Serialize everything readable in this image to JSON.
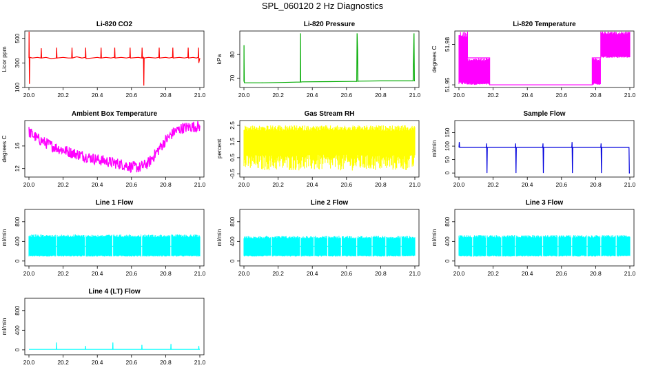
{
  "figure": {
    "title": "SPL_060120  2 Hz Diagnostics"
  },
  "chart_data": [
    {
      "type": "line",
      "title": "Li-820 CO2",
      "ylabel": "Licor ppm",
      "xlabel": "",
      "color": "#ff0000",
      "xlim": [
        20.0,
        21.0
      ],
      "ylim": [
        100,
        560
      ],
      "xticks": [
        20.0,
        20.2,
        20.4,
        20.6,
        20.8,
        21.0
      ],
      "xtick_labels": [
        "20.0",
        "20.2",
        "20.4",
        "20.6",
        "20.8",
        "21.0"
      ],
      "yticks": [
        100,
        300,
        500
      ],
      "ytick_labels": [
        "100",
        "300",
        "500"
      ],
      "series": [
        {
          "x": [
            20.0,
            20.001,
            20.003,
            20.005,
            20.02,
            20.05,
            20.07,
            20.072,
            20.074,
            20.1,
            20.13,
            20.16,
            20.162,
            20.164,
            20.2,
            20.23,
            20.25,
            20.252,
            20.254,
            20.28,
            20.31,
            20.33,
            20.332,
            20.334,
            20.37,
            20.4,
            20.42,
            20.422,
            20.424,
            20.45,
            20.48,
            20.5,
            20.502,
            20.504,
            20.54,
            20.57,
            20.59,
            20.592,
            20.594,
            20.64,
            20.66,
            20.662,
            20.664,
            20.67,
            20.672,
            20.674,
            20.7,
            20.74,
            20.76,
            20.762,
            20.764,
            20.8,
            20.82,
            20.84,
            20.842,
            20.844,
            20.88,
            20.91,
            20.93,
            20.932,
            20.934,
            20.96,
            20.98,
            20.99,
            20.992,
            20.994,
            21.0
          ],
          "y": [
            340,
            560,
            130,
            345,
            340,
            345,
            340,
            420,
            340,
            345,
            335,
            340,
            425,
            340,
            345,
            340,
            340,
            425,
            340,
            350,
            340,
            345,
            425,
            335,
            340,
            345,
            340,
            425,
            340,
            345,
            340,
            345,
            425,
            340,
            345,
            340,
            345,
            425,
            340,
            345,
            340,
            425,
            340,
            345,
            115,
            340,
            345,
            340,
            345,
            425,
            340,
            345,
            340,
            345,
            425,
            340,
            345,
            340,
            345,
            425,
            340,
            345,
            340,
            345,
            425,
            300,
            340
          ]
        }
      ]
    },
    {
      "type": "line",
      "title": "Li-820 Pressure",
      "ylabel": "kPa",
      "xlabel": "",
      "color": "#00aa00",
      "xlim": [
        20.0,
        21.0
      ],
      "ylim": [
        66,
        90
      ],
      "xticks": [
        20.0,
        20.2,
        20.4,
        20.6,
        20.8,
        21.0
      ],
      "xtick_labels": [
        "20.0",
        "20.2",
        "20.4",
        "20.6",
        "20.8",
        "21.0"
      ],
      "yticks": [
        70,
        80
      ],
      "ytick_labels": [
        "70",
        "80"
      ],
      "series": [
        {
          "x": [
            20.0,
            20.0005,
            20.001,
            20.002,
            20.003,
            20.1,
            20.2,
            20.33,
            20.331,
            20.332,
            20.333,
            20.34,
            20.5,
            20.66,
            20.662,
            20.665,
            20.667,
            20.67,
            20.8,
            20.99,
            20.995,
            20.997,
            21.0
          ],
          "y": [
            68.5,
            84,
            78,
            68.2,
            68.0,
            68.0,
            68.1,
            68.3,
            89,
            68.3,
            68.3,
            68.4,
            68.5,
            68.6,
            89,
            82,
            68.6,
            68.7,
            68.8,
            68.8,
            89,
            68.8,
            68.8
          ]
        }
      ]
    },
    {
      "type": "line",
      "title": "Li-820 Temperature",
      "ylabel": "degrees C",
      "xlabel": "",
      "color": "#ff00ff",
      "xlim": [
        20.0,
        21.0
      ],
      "ylim": [
        51.948,
        51.99
      ],
      "xticks": [
        20.0,
        20.2,
        20.4,
        20.6,
        20.8,
        21.0
      ],
      "xtick_labels": [
        "20.0",
        "20.2",
        "20.4",
        "20.6",
        "20.8",
        "21.0"
      ],
      "yticks": [
        51.95,
        51.98
      ],
      "ytick_labels": [
        "51.95",
        "51.98"
      ],
      "series": [
        {
          "name": "",
          "x": [
            20.0,
            20.05,
            20.05,
            20.06,
            20.06,
            20.18,
            20.18,
            20.78,
            20.78,
            20.83,
            20.83,
            21.0
          ],
          "y": [
            51.99,
            51.99,
            51.97,
            51.97,
            51.97,
            51.97,
            51.95,
            51.95,
            51.97,
            51.97,
            51.99,
            51.99
          ]
        }
      ],
      "band": {
        "x": [
          20.0,
          20.05,
          20.05,
          20.18,
          20.18,
          20.78,
          20.78,
          20.83,
          20.83,
          21.0
        ],
        "ylow": [
          51.95,
          51.95,
          51.95,
          51.95,
          51.95,
          51.95,
          51.95,
          51.95,
          51.97,
          51.97
        ],
        "yhigh": [
          51.99,
          51.99,
          51.97,
          51.97,
          51.95,
          51.95,
          51.97,
          51.97,
          51.99,
          51.99
        ]
      }
    },
    {
      "type": "line",
      "title": "Ambient Box Temperature",
      "ylabel": "degrees C",
      "xlabel": "",
      "color": "#ff00ff",
      "xlim": [
        20.0,
        21.0
      ],
      "ylim": [
        10.5,
        20.5
      ],
      "xticks": [
        20.0,
        20.2,
        20.4,
        20.6,
        20.8,
        21.0
      ],
      "xtick_labels": [
        "20.0",
        "20.2",
        "20.4",
        "20.6",
        "20.8",
        "21.0"
      ],
      "yticks": [
        12,
        16
      ],
      "ytick_labels": [
        "12",
        "16"
      ],
      "series": [
        {
          "x": [
            20.0,
            20.05,
            20.1,
            20.15,
            20.2,
            20.25,
            20.3,
            20.35,
            20.4,
            20.45,
            20.5,
            20.55,
            20.6,
            20.65,
            20.7,
            20.75,
            20.8,
            20.85,
            20.9,
            20.95,
            21.0
          ],
          "y": [
            18.5,
            17.3,
            16.5,
            15.8,
            15.3,
            14.8,
            14.4,
            14.0,
            13.6,
            13.3,
            13.0,
            12.7,
            12.3,
            12.2,
            13.0,
            15.0,
            17.0,
            18.5,
            19.2,
            19.4,
            19.5
          ]
        }
      ],
      "noise": 1.0
    },
    {
      "type": "line",
      "title": "Gas Stream RH",
      "ylabel": "percent",
      "xlabel": "",
      "color": "#ffff00",
      "xlim": [
        20.0,
        21.0
      ],
      "ylim": [
        -0.7,
        2.8
      ],
      "xticks": [
        20.0,
        20.2,
        20.4,
        20.6,
        20.8,
        21.0
      ],
      "xtick_labels": [
        "20.0",
        "20.2",
        "20.4",
        "20.6",
        "20.8",
        "21.0"
      ],
      "yticks": [
        -0.5,
        0.5,
        1.5,
        2.5
      ],
      "ytick_labels": [
        "-0.5",
        "0.5",
        "1.5",
        "2.5"
      ],
      "series": [
        {
          "x": [
            20.0,
            21.0
          ],
          "y": [
            1.1,
            1.1
          ]
        }
      ],
      "band": {
        "x": [
          20.0,
          21.0
        ],
        "ylow": [
          -0.3,
          -0.3
        ],
        "yhigh": [
          2.5,
          2.5
        ]
      }
    },
    {
      "type": "line",
      "title": "Sample Flow",
      "ylabel": "ml/min",
      "xlabel": "",
      "color": "#0000dd",
      "xlim": [
        20.0,
        21.0
      ],
      "ylim": [
        -15,
        195
      ],
      "xticks": [
        20.0,
        20.2,
        20.4,
        20.6,
        20.8,
        21.0
      ],
      "xtick_labels": [
        "20.0",
        "20.2",
        "20.4",
        "20.6",
        "20.8",
        "21.0"
      ],
      "yticks": [
        0,
        50,
        100,
        150
      ],
      "ytick_labels": [
        "0",
        "50",
        "100",
        "150"
      ],
      "series": [
        {
          "x": [
            20.0,
            20.002,
            20.004,
            20.16,
            20.162,
            20.164,
            20.166,
            20.33,
            20.332,
            20.334,
            20.336,
            20.49,
            20.492,
            20.494,
            20.496,
            20.66,
            20.662,
            20.664,
            20.666,
            20.83,
            20.832,
            20.834,
            20.836,
            20.995,
            20.997,
            21.0
          ],
          "y": [
            95,
            115,
            95,
            95,
            110,
            0,
            95,
            95,
            110,
            0,
            95,
            95,
            110,
            0,
            95,
            95,
            115,
            0,
            95,
            95,
            110,
            0,
            95,
            95,
            0,
            0
          ]
        }
      ]
    },
    {
      "type": "line",
      "title": "Line 1 Flow",
      "ylabel": "ml/min",
      "xlabel": "",
      "color": "#00ffff",
      "xlim": [
        20.0,
        21.0
      ],
      "ylim": [
        -100,
        1050
      ],
      "xticks": [
        20.0,
        20.2,
        20.4,
        20.6,
        20.8,
        21.0
      ],
      "xtick_labels": [
        "20.0",
        "20.2",
        "20.4",
        "20.6",
        "20.8",
        "21.0"
      ],
      "yticks": [
        0,
        400,
        800
      ],
      "ytick_labels": [
        "0",
        "400",
        "800"
      ],
      "series": [
        {
          "x": [
            20.0,
            21.0
          ],
          "y": [
            300,
            300
          ]
        }
      ],
      "band": {
        "x": [
          20.0,
          21.0
        ],
        "ylow": [
          90,
          90
        ],
        "yhigh": [
          540,
          540
        ]
      },
      "gaps": [
        20.16,
        20.33,
        20.49,
        20.66,
        20.83
      ]
    },
    {
      "type": "line",
      "title": "Line 2 Flow",
      "ylabel": "ml/min",
      "xlabel": "",
      "color": "#00ffff",
      "xlim": [
        20.0,
        21.0
      ],
      "ylim": [
        -100,
        1050
      ],
      "xticks": [
        20.0,
        20.2,
        20.4,
        20.6,
        20.8,
        21.0
      ],
      "xtick_labels": [
        "20.0",
        "20.2",
        "20.4",
        "20.6",
        "20.8",
        "21.0"
      ],
      "yticks": [
        0,
        400,
        800
      ],
      "ytick_labels": [
        "0",
        "400",
        "800"
      ],
      "series": [
        {
          "x": [
            20.0,
            21.0
          ],
          "y": [
            300,
            300
          ]
        }
      ],
      "band": {
        "x": [
          20.0,
          21.0
        ],
        "ylow": [
          90,
          90
        ],
        "yhigh": [
          510,
          510
        ]
      },
      "gaps": [
        20.16,
        20.33,
        20.41,
        20.49,
        20.57,
        20.66,
        20.75,
        20.83,
        20.92
      ]
    },
    {
      "type": "line",
      "title": "Line 3 Flow",
      "ylabel": "ml/min",
      "xlabel": "",
      "color": "#00ffff",
      "xlim": [
        20.0,
        21.0
      ],
      "ylim": [
        -100,
        1050
      ],
      "xticks": [
        20.0,
        20.2,
        20.4,
        20.6,
        20.8,
        21.0
      ],
      "xtick_labels": [
        "20.0",
        "20.2",
        "20.4",
        "20.6",
        "20.8",
        "21.0"
      ],
      "yticks": [
        0,
        400,
        800
      ],
      "ytick_labels": [
        "0",
        "400",
        "800"
      ],
      "series": [
        {
          "x": [
            20.0,
            21.0
          ],
          "y": [
            300,
            300
          ]
        }
      ],
      "band": {
        "x": [
          20.0,
          21.0
        ],
        "ylow": [
          90,
          90
        ],
        "yhigh": [
          530,
          530
        ]
      },
      "gaps": [
        20.08,
        20.16,
        20.25,
        20.33,
        20.49,
        20.58,
        20.66,
        20.75,
        20.83,
        20.92
      ]
    },
    {
      "type": "line",
      "title": "Line 4 (LT) Flow",
      "ylabel": "ml/min",
      "xlabel": "",
      "color": "#00ffff",
      "xlim": [
        20.0,
        21.0
      ],
      "ylim": [
        -100,
        1050
      ],
      "xticks": [
        20.0,
        20.2,
        20.4,
        20.6,
        20.8,
        21.0
      ],
      "xtick_labels": [
        "20.0",
        "20.2",
        "20.4",
        "20.6",
        "20.8",
        "21.0"
      ],
      "yticks": [
        0,
        400,
        800
      ],
      "ytick_labels": [
        "0",
        "400",
        "800"
      ],
      "series": [
        {
          "x": [
            20.0,
            20.16,
            20.161,
            20.162,
            20.163,
            20.33,
            20.331,
            20.332,
            20.333,
            20.49,
            20.491,
            20.492,
            20.493,
            20.66,
            20.661,
            20.662,
            20.663,
            20.83,
            20.831,
            20.832,
            20.833,
            20.993,
            20.994,
            20.995,
            21.0
          ],
          "y": [
            10,
            10,
            150,
            10,
            10,
            10,
            80,
            10,
            10,
            10,
            150,
            10,
            10,
            10,
            100,
            10,
            10,
            10,
            120,
            10,
            10,
            10,
            80,
            10,
            10
          ]
        }
      ]
    }
  ]
}
